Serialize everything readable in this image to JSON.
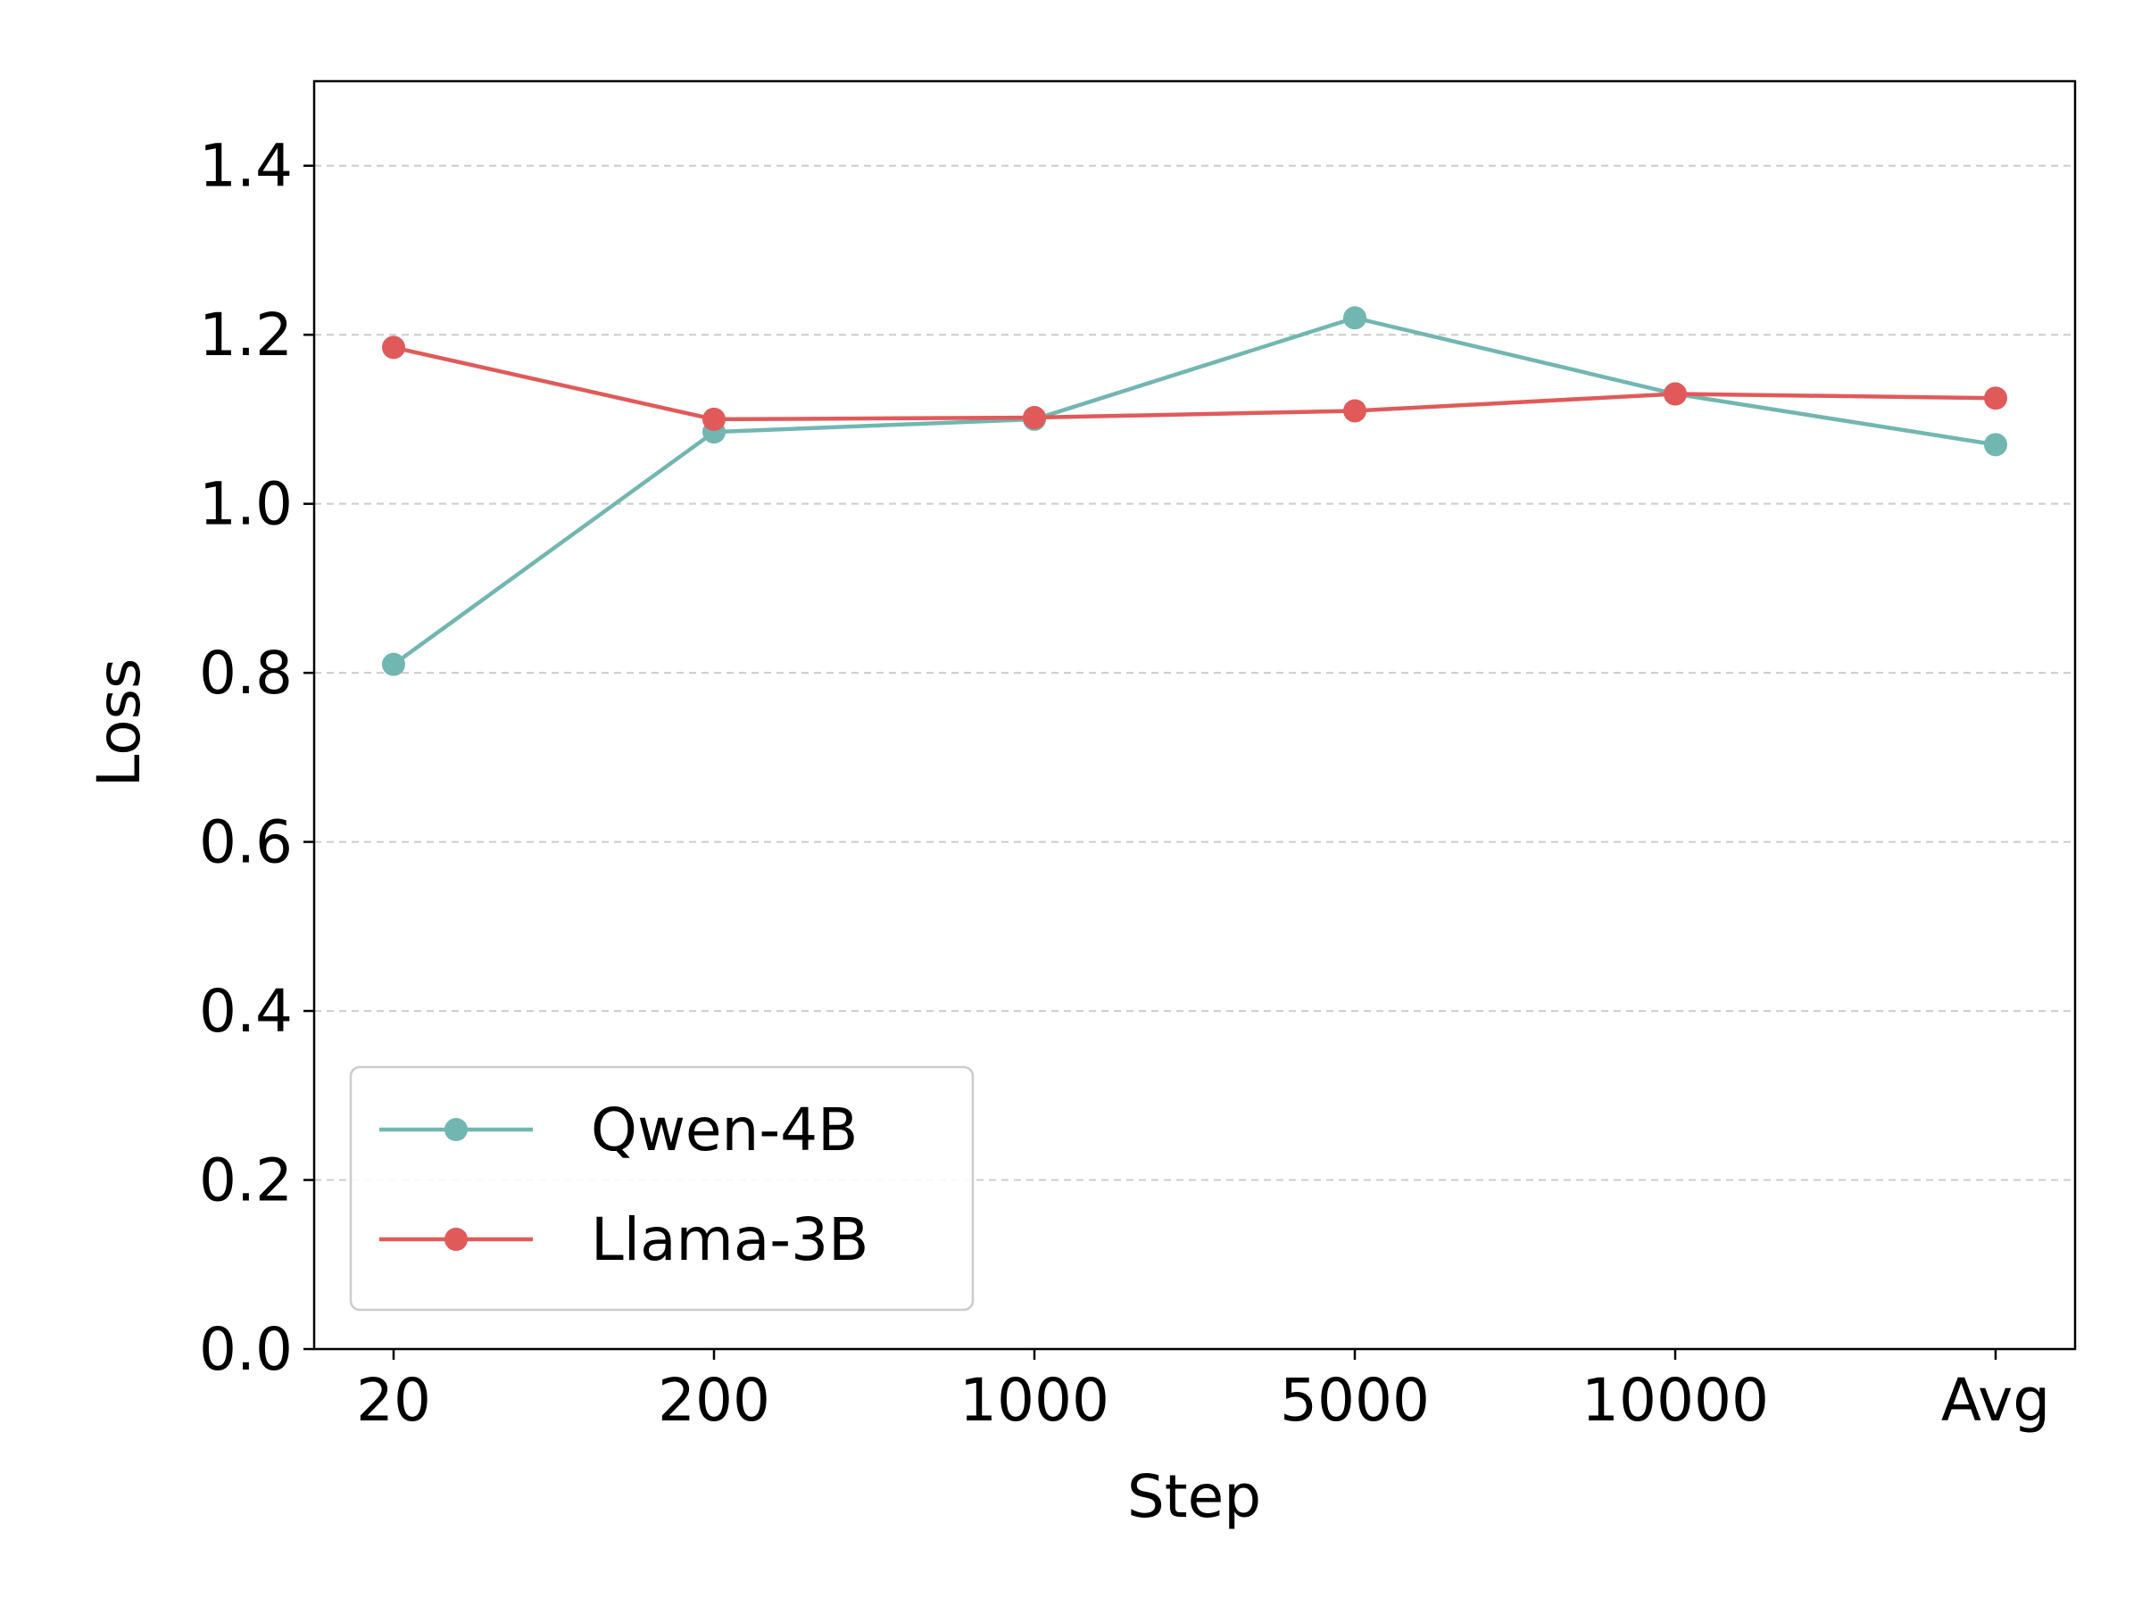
{
  "chart_data": {
    "type": "line",
    "xlabel": "Step",
    "ylabel": "Loss",
    "categories": [
      "20",
      "200",
      "1000",
      "5000",
      "10000",
      "Avg"
    ],
    "ylim": [
      0,
      1.5
    ],
    "yticks": [
      "0.0",
      "0.2",
      "0.4",
      "0.6",
      "0.8",
      "1.0",
      "1.2",
      "1.4"
    ],
    "grid": "horizontal dashed",
    "legend_position": "lower-left",
    "series": [
      {
        "name": "Qwen-4B",
        "color": "#72b6b1",
        "values": [
          0.81,
          1.085,
          1.1,
          1.22,
          1.13,
          1.07
        ]
      },
      {
        "name": "Llama-3B",
        "color": "#e05a5a",
        "values": [
          1.185,
          1.1,
          1.102,
          1.11,
          1.13,
          1.125
        ]
      }
    ]
  }
}
